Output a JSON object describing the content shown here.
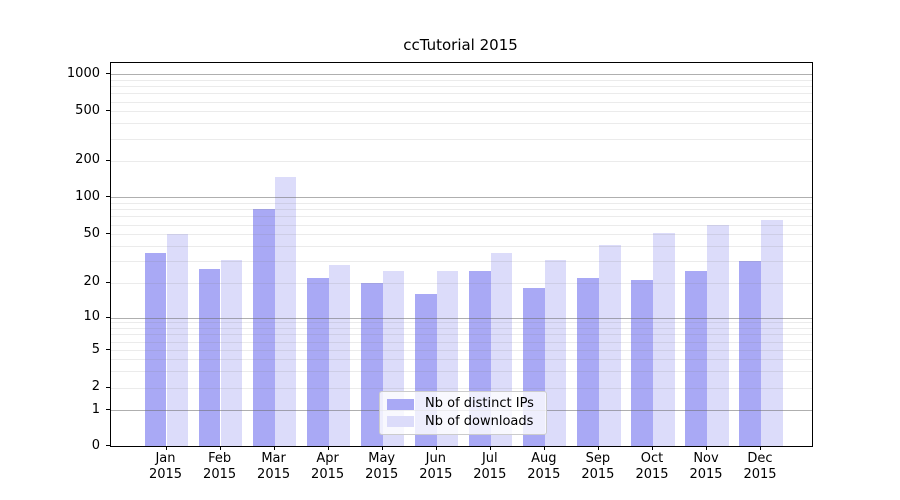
{
  "chart_data": {
    "type": "bar",
    "title": "ccTutorial 2015",
    "categories": [
      "Jan 2015",
      "Feb 2015",
      "Mar 2015",
      "Apr 2015",
      "May 2015",
      "Jun 2015",
      "Jul 2015",
      "Aug 2015",
      "Sep 2015",
      "Oct 2015",
      "Nov 2015",
      "Dec 2015"
    ],
    "series": [
      {
        "name": "Nb of distinct IPs",
        "color": "#a9a9f5",
        "values": [
          35,
          26,
          80,
          22,
          20,
          16,
          25,
          18,
          22,
          21,
          25,
          30
        ]
      },
      {
        "name": "Nb of downloads",
        "color": "#dcdcfa",
        "values": [
          50,
          31,
          148,
          28,
          25,
          25,
          35,
          31,
          41,
          51,
          60,
          65
        ]
      }
    ],
    "xlabel": "",
    "ylabel": "",
    "yscale": "symlog",
    "yticks": [
      0,
      1,
      2,
      5,
      10,
      20,
      50,
      100,
      200,
      500,
      1000
    ],
    "ylim": [
      0,
      1300
    ],
    "grid": true,
    "grid_major_levels": [
      1,
      10,
      100,
      1000
    ],
    "legend_position": "lower-center",
    "colors": {
      "background": "#ffffff",
      "axis": "#000000",
      "major_grid": "#b0b0b0",
      "minor_grid": "#e9e9e9",
      "legend_border": "#cccccc"
    }
  }
}
